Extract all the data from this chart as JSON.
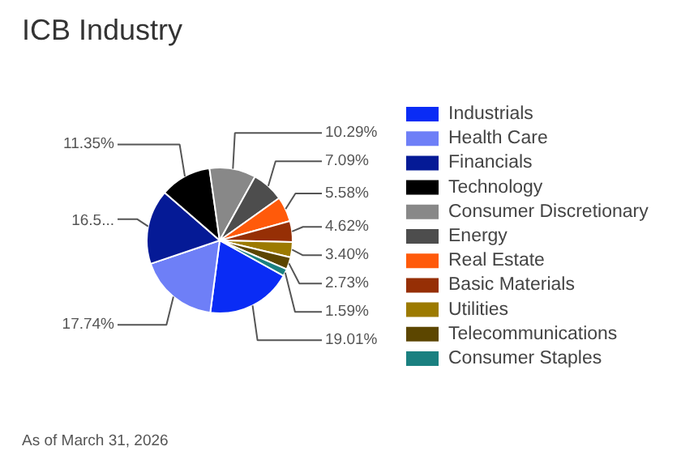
{
  "chart_data": {
    "type": "pie",
    "title": "ICB Industry",
    "categories": [
      "Industrials",
      "Health Care",
      "Financials",
      "Technology",
      "Consumer Discretionary",
      "Energy",
      "Real Estate",
      "Basic Materials",
      "Utilities",
      "Telecommunications",
      "Consumer Staples"
    ],
    "values": [
      19.01,
      17.74,
      16.59,
      11.35,
      10.29,
      7.09,
      5.58,
      4.62,
      3.4,
      2.73,
      1.59
    ],
    "value_labels": [
      "19.01%",
      "17.74%",
      "16.5...",
      "11.35%",
      "10.29%",
      "7.09%",
      "5.58%",
      "4.62%",
      "3.40%",
      "2.73%",
      "1.59%"
    ],
    "colors": [
      "#0a2cf5",
      "#6e7ff7",
      "#051a96",
      "#000000",
      "#888888",
      "#4d4d4d",
      "#ff5a0a",
      "#962f05",
      "#9c7a00",
      "#5c4600",
      "#1a8080"
    ],
    "legend": "right",
    "annotations": [
      "As of March 31, 2026"
    ]
  }
}
